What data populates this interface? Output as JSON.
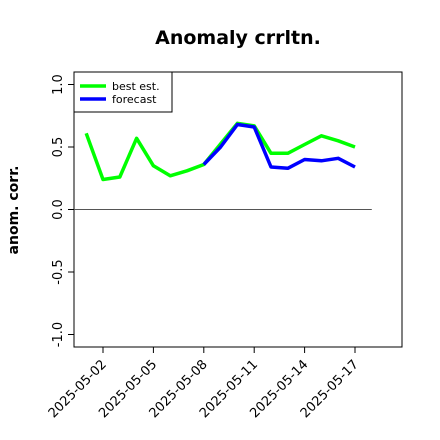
{
  "chart_data": {
    "type": "line",
    "title": "Anomaly crrltn.",
    "ylabel": "anom. corr.",
    "xlabel": "",
    "ylim": [
      -1.0,
      1.0
    ],
    "yticks": [
      -1.0,
      -0.5,
      0.0,
      0.5,
      1.0
    ],
    "ytick_labels": [
      "-1.0",
      "-0.5",
      "0.0",
      "0.5",
      "1.0"
    ],
    "xticks": [
      "2025-05-02",
      "2025-05-05",
      "2025-05-08",
      "2025-05-11",
      "2025-05-14",
      "2025-05-17"
    ],
    "highlight_xtick": "2025-05-08",
    "highlight_color": "#228B22",
    "reference_line": 0.0,
    "grid": false,
    "legend_position": "top-left",
    "series": [
      {
        "name": "best est.",
        "color": "#00ff00",
        "x": [
          "2025-05-01",
          "2025-05-02",
          "2025-05-03",
          "2025-05-04",
          "2025-05-05",
          "2025-05-06",
          "2025-05-07",
          "2025-05-08",
          "2025-05-09",
          "2025-05-10",
          "2025-05-11",
          "2025-05-12",
          "2025-05-13",
          "2025-05-14",
          "2025-05-15",
          "2025-05-16",
          "2025-05-17"
        ],
        "values": [
          0.61,
          0.24,
          0.26,
          0.57,
          0.35,
          0.27,
          0.31,
          0.36,
          null,
          0.69,
          0.67,
          0.45,
          0.45,
          0.52,
          0.59,
          0.55,
          0.5
        ]
      },
      {
        "name": "forecast",
        "color": "#0000ff",
        "x": [
          "2025-05-08",
          "2025-05-09",
          "2025-05-10",
          "2025-05-11",
          "2025-05-12",
          "2025-05-13",
          "2025-05-14",
          "2025-05-15",
          "2025-05-16",
          "2025-05-17"
        ],
        "values": [
          0.36,
          0.5,
          0.68,
          0.66,
          0.34,
          0.33,
          0.4,
          0.39,
          0.41,
          0.34
        ]
      }
    ]
  }
}
